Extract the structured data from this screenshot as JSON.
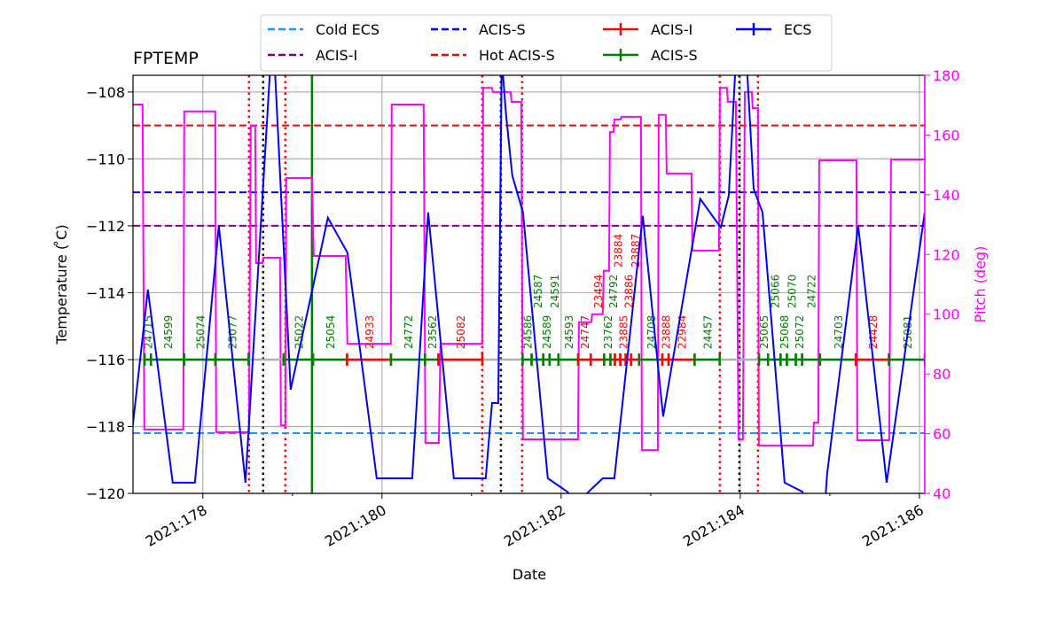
{
  "chart_data": {
    "type": "line",
    "title": "FPTEMP",
    "xlabel": "Date",
    "ylabel": "Temperature ($^\\circ$C)",
    "ylabel_display": "Temperature ( ̊C)",
    "y2label": "Pitch (deg)",
    "xlim": [
      177.22,
      186.06
    ],
    "ylim": [
      -120,
      -107.5
    ],
    "y2lim": [
      40,
      180
    ],
    "grid": true,
    "legend_placement": "top-center, outside",
    "x_ticks": [
      {
        "v": 178,
        "label": "2021:178"
      },
      {
        "v": 180,
        "label": "2021:180"
      },
      {
        "v": 182,
        "label": "2021:182"
      },
      {
        "v": 184,
        "label": "2021:184"
      },
      {
        "v": 186,
        "label": "2021:186"
      }
    ],
    "x_minor_ticks": [
      179,
      181,
      183,
      185
    ],
    "y_ticks": [
      -120,
      -118,
      -116,
      -114,
      -112,
      -110,
      -108
    ],
    "y2_ticks": [
      40,
      60,
      80,
      100,
      120,
      140,
      160,
      180
    ],
    "colors": {
      "temp": "#0000ff",
      "pitch": "#ff00ff",
      "acis_i": "#ff0000",
      "acis_s": "#008000",
      "cold_ecs": "#1e90ff",
      "acis_s_limit": "#0000ff",
      "hot_acis_s": "#ff0000",
      "acis_i_limit": "#800080",
      "grid": "#b0b0b0"
    },
    "limits": [
      {
        "name": "Cold ECS",
        "value": -118.2,
        "color": "#1e90ff"
      },
      {
        "name": "ACIS-I",
        "value": -112.0,
        "color": "#800080"
      },
      {
        "name": "ACIS-S",
        "value": -111.0,
        "color": "#0000ff"
      },
      {
        "name": "Hot ACIS-S",
        "value": -109.0,
        "color": "#ff0000"
      }
    ],
    "legend": [
      {
        "label": "Cold ECS",
        "style": "dash",
        "color": "#1e90ff"
      },
      {
        "label": "ACIS-I",
        "style": "dash",
        "color": "#800080"
      },
      {
        "label": "ACIS-S",
        "style": "dash",
        "color": "#0000ff"
      },
      {
        "label": "Hot ACIS-S",
        "style": "dash",
        "color": "#ff0000"
      },
      {
        "label": "ACIS-I",
        "style": "errbar",
        "color": "#ff0000"
      },
      {
        "label": "ACIS-S",
        "style": "errbar",
        "color": "#008000"
      },
      {
        "label": "ECS",
        "style": "errbar",
        "color": "#0000ff"
      }
    ],
    "temperature": [
      [
        177.218,
        -117.96
      ],
      [
        177.386,
        -113.91
      ],
      [
        177.663,
        -119.68
      ],
      [
        177.911,
        -119.68
      ],
      [
        178.178,
        -112.0
      ],
      [
        178.475,
        -119.68
      ],
      [
        178.78,
        -106
      ],
      [
        178.98,
        -116.9
      ],
      [
        179.396,
        -111.76
      ],
      [
        179.614,
        -112.8
      ],
      [
        179.941,
        -119.55
      ],
      [
        180.337,
        -119.55
      ],
      [
        180.515,
        -111.6
      ],
      [
        180.802,
        -119.55
      ],
      [
        181.158,
        -119.55
      ],
      [
        181.228,
        -117.3
      ],
      [
        181.297,
        -117.3
      ],
      [
        181.337,
        -107.0
      ],
      [
        181.386,
        -108.7
      ],
      [
        181.455,
        -110.5
      ],
      [
        181.574,
        -111.6
      ],
      [
        181.851,
        -119.55
      ],
      [
        182.069,
        -119.95
      ],
      [
        182.17,
        -120.3
      ],
      [
        182.465,
        -119.55
      ],
      [
        182.594,
        -119.55
      ],
      [
        182.911,
        -111.7
      ],
      [
        183.139,
        -117.7
      ],
      [
        183.554,
        -111.2
      ],
      [
        183.782,
        -112.05
      ],
      [
        183.871,
        -111.1
      ],
      [
        183.97,
        -106
      ],
      [
        184.069,
        -107
      ],
      [
        184.149,
        -110.9
      ],
      [
        184.248,
        -111.6
      ],
      [
        184.495,
        -119.68
      ],
      [
        184.693,
        -119.95
      ],
      [
        184.76,
        -120.5
      ],
      [
        184.941,
        -120.5
      ],
      [
        184.97,
        -119.4
      ],
      [
        185.317,
        -112.0
      ],
      [
        185.634,
        -119.68
      ],
      [
        186.059,
        -111.6
      ]
    ],
    "pitch": [
      [
        177.218,
        170.2
      ],
      [
        177.327,
        170.2
      ],
      [
        177.347,
        61.4
      ],
      [
        177.782,
        61.4
      ],
      [
        177.792,
        167.9
      ],
      [
        178.139,
        167.9
      ],
      [
        178.149,
        60.5
      ],
      [
        178.515,
        60.5
      ],
      [
        178.535,
        163.1
      ],
      [
        178.584,
        163.1
      ],
      [
        178.594,
        117.1
      ],
      [
        178.663,
        117.1
      ],
      [
        178.673,
        118.9
      ],
      [
        178.861,
        118.9
      ],
      [
        178.871,
        62.8
      ],
      [
        178.921,
        62.8
      ],
      [
        178.931,
        145.6
      ],
      [
        179.218,
        145.6
      ],
      [
        179.238,
        119.5
      ],
      [
        179.594,
        119.5
      ],
      [
        179.614,
        90.1
      ],
      [
        180.099,
        90.1
      ],
      [
        180.109,
        170.2
      ],
      [
        180.465,
        170.2
      ],
      [
        180.485,
        56.9
      ],
      [
        180.634,
        56.9
      ],
      [
        180.653,
        90.1
      ],
      [
        181.119,
        90.1
      ],
      [
        181.129,
        175.8
      ],
      [
        181.228,
        175.8
      ],
      [
        181.238,
        174.4
      ],
      [
        181.436,
        174.4
      ],
      [
        181.446,
        171.1
      ],
      [
        181.554,
        171.1
      ],
      [
        181.574,
        58.1
      ],
      [
        182.188,
        58.1
      ],
      [
        182.198,
        97.3
      ],
      [
        182.337,
        97.3
      ],
      [
        182.347,
        100
      ],
      [
        182.465,
        100
      ],
      [
        182.475,
        114.5
      ],
      [
        182.535,
        114.5
      ],
      [
        182.545,
        161
      ],
      [
        182.584,
        161
      ],
      [
        182.594,
        165.2
      ],
      [
        182.663,
        165.2
      ],
      [
        182.673,
        166.1
      ],
      [
        182.891,
        166.1
      ],
      [
        182.901,
        54.5
      ],
      [
        183.079,
        54.5
      ],
      [
        183.089,
        166.7
      ],
      [
        183.168,
        166.7
      ],
      [
        183.178,
        147.1
      ],
      [
        183.455,
        147.1
      ],
      [
        183.465,
        121.3
      ],
      [
        183.762,
        121.3
      ],
      [
        183.772,
        175.8
      ],
      [
        183.851,
        175.8
      ],
      [
        183.861,
        171.1
      ],
      [
        183.95,
        171.1
      ],
      [
        183.98,
        58
      ],
      [
        184.03,
        58
      ],
      [
        184.05,
        174.4
      ],
      [
        184.129,
        174.4
      ],
      [
        184.139,
        169.0
      ],
      [
        184.198,
        169.0
      ],
      [
        184.208,
        56.0
      ],
      [
        184.812,
        56.0
      ],
      [
        184.822,
        63.7
      ],
      [
        184.871,
        63.7
      ],
      [
        184.881,
        151.5
      ],
      [
        185.297,
        151.5
      ],
      [
        185.307,
        57.8
      ],
      [
        185.663,
        57.8
      ],
      [
        185.683,
        151.8
      ],
      [
        186.059,
        151.8
      ]
    ],
    "obsid_level": -116.0,
    "observations": [
      {
        "id": "24715",
        "inst": "ACIS-S",
        "start": 177.35,
        "end": 177.42
      },
      {
        "id": "24599",
        "inst": "ACIS-S",
        "start": 177.42,
        "end": 177.79
      },
      {
        "id": "25074",
        "inst": "ACIS-S",
        "start": 177.79,
        "end": 178.14
      },
      {
        "id": "25077",
        "inst": "ACIS-S",
        "start": 178.14,
        "end": 178.51
      },
      {
        "id": "25022",
        "inst": "ACIS-S",
        "start": 178.9,
        "end": 179.23
      },
      {
        "id": "25054",
        "inst": "ACIS-S",
        "start": 179.23,
        "end": 179.61
      },
      {
        "id": "24933",
        "inst": "ACIS-I",
        "start": 179.61,
        "end": 180.1
      },
      {
        "id": "24772",
        "inst": "ACIS-S",
        "start": 180.1,
        "end": 180.48
      },
      {
        "id": "23562",
        "inst": "ACIS-S",
        "start": 180.48,
        "end": 180.63
      },
      {
        "id": "25082",
        "inst": "ACIS-I",
        "start": 180.63,
        "end": 181.12
      },
      {
        "id": "24586",
        "inst": "ACIS-S",
        "start": 181.57,
        "end": 181.67
      },
      {
        "id": "24587",
        "inst": "ACIS-S",
        "start": 181.67,
        "end": 181.8
      },
      {
        "id": "24589",
        "inst": "ACIS-S",
        "start": 181.8,
        "end": 181.87
      },
      {
        "id": "24591",
        "inst": "ACIS-S",
        "start": 181.87,
        "end": 181.97
      },
      {
        "id": "24593",
        "inst": "ACIS-S",
        "start": 181.97,
        "end": 182.19
      },
      {
        "id": "24747",
        "inst": "ACIS-I",
        "start": 182.19,
        "end": 182.33
      },
      {
        "id": "23494",
        "inst": "ACIS-I",
        "start": 182.33,
        "end": 182.48
      },
      {
        "id": "23762",
        "inst": "ACIS-S",
        "start": 182.48,
        "end": 182.55
      },
      {
        "id": "24792",
        "inst": "ACIS-S",
        "start": 182.55,
        "end": 182.6
      },
      {
        "id": "23884",
        "inst": "ACIS-I",
        "start": 182.6,
        "end": 182.66
      },
      {
        "id": "23885",
        "inst": "ACIS-I",
        "start": 182.66,
        "end": 182.72
      },
      {
        "id": "23886",
        "inst": "ACIS-I",
        "start": 182.72,
        "end": 182.78
      },
      {
        "id": "23887",
        "inst": "ACIS-I",
        "start": 182.78,
        "end": 182.87
      },
      {
        "id": "24708",
        "inst": "ACIS-S",
        "start": 182.87,
        "end": 183.13
      },
      {
        "id": "23888",
        "inst": "ACIS-I",
        "start": 183.13,
        "end": 183.2
      },
      {
        "id": "22984",
        "inst": "ACIS-I",
        "start": 183.2,
        "end": 183.49
      },
      {
        "id": "24457",
        "inst": "ACIS-S",
        "start": 183.49,
        "end": 183.77
      },
      {
        "id": "25065",
        "inst": "ACIS-S",
        "start": 184.21,
        "end": 184.31
      },
      {
        "id": "25066",
        "inst": "ACIS-S",
        "start": 184.31,
        "end": 184.45
      },
      {
        "id": "25068",
        "inst": "ACIS-S",
        "start": 184.45,
        "end": 184.52
      },
      {
        "id": "25070",
        "inst": "ACIS-S",
        "start": 184.52,
        "end": 184.62
      },
      {
        "id": "25072",
        "inst": "ACIS-S",
        "start": 184.62,
        "end": 184.69
      },
      {
        "id": "24722",
        "inst": "ACIS-S",
        "start": 184.69,
        "end": 184.89
      },
      {
        "id": "24703",
        "inst": "ACIS-S",
        "start": 184.89,
        "end": 185.29
      },
      {
        "id": "24428",
        "inst": "ACIS-I",
        "start": 185.29,
        "end": 185.66
      },
      {
        "id": "25081",
        "inst": "ACIS-S",
        "start": 185.66,
        "end": 186.06
      }
    ],
    "vlines": [
      {
        "day": 178.515,
        "style": "dotted",
        "color": "#ff0000"
      },
      {
        "day": 178.921,
        "style": "dotted",
        "color": "#ff0000"
      },
      {
        "day": 181.119,
        "style": "dotted",
        "color": "#ff0000"
      },
      {
        "day": 181.564,
        "style": "dotted",
        "color": "#ff0000"
      },
      {
        "day": 183.772,
        "style": "dotted",
        "color": "#ff0000"
      },
      {
        "day": 184.198,
        "style": "dotted",
        "color": "#ff0000"
      },
      {
        "day": 178.673,
        "style": "dotted",
        "color": "#000000"
      },
      {
        "day": 181.327,
        "style": "dotted",
        "color": "#000000"
      },
      {
        "day": 183.99,
        "style": "dotted",
        "color": "#000000"
      },
      {
        "day": 179.218,
        "style": "solid",
        "color": "#008000"
      }
    ]
  }
}
